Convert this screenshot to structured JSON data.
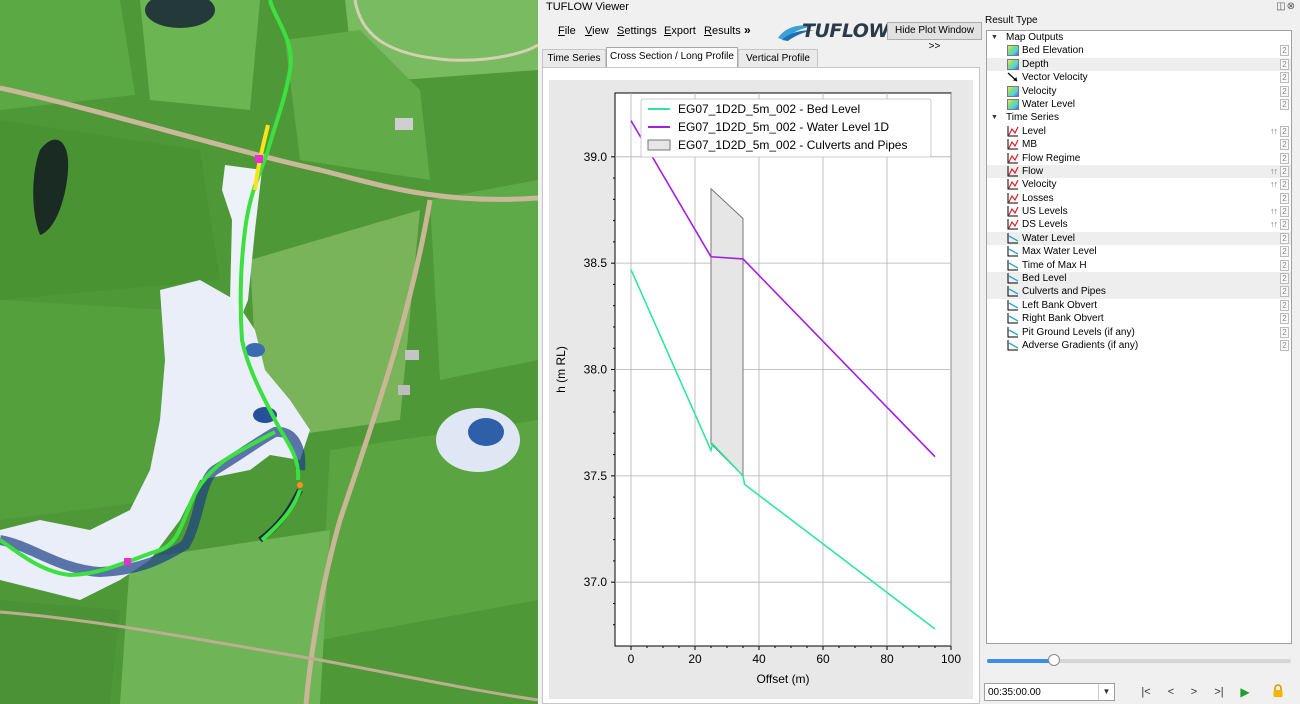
{
  "viewer": {
    "title": "TUFLOW Viewer",
    "window_buttons": "◫⊗",
    "menu": [
      "File",
      "View",
      "Settings",
      "Export",
      "Results"
    ],
    "more": "»",
    "logo": "TUFLOW",
    "hide_plot_button": "Hide Plot Window >>"
  },
  "tabs": [
    {
      "label": "Time Series",
      "active": false
    },
    {
      "label": "Cross Section / Long Profile",
      "active": true
    },
    {
      "label": "Vertical Profile",
      "active": false
    }
  ],
  "chart_data": {
    "type": "line",
    "xlabel": "Offset (m)",
    "ylabel": "h (m RL)",
    "xlim": [
      -5,
      100
    ],
    "ylim": [
      36.7,
      39.3
    ],
    "xticks": [
      0,
      20,
      40,
      60,
      80,
      100
    ],
    "yticks": [
      37.0,
      37.5,
      38.0,
      38.5,
      39.0
    ],
    "grid": true,
    "legend_position": "top-center",
    "series": [
      {
        "name": "EG07_1D2D_5m_002 - Bed Level",
        "color": "#2ee6a0",
        "x": [
          0,
          25,
          25.5,
          35,
          35.5,
          95
        ],
        "y": [
          38.47,
          37.62,
          37.65,
          37.5,
          37.46,
          36.78
        ]
      },
      {
        "name": "EG07_1D2D_5m_002 - Water Level 1D",
        "color": "#a21ee0",
        "x": [
          0,
          25,
          35,
          95
        ],
        "y": [
          39.17,
          38.53,
          38.52,
          37.59
        ]
      },
      {
        "name": "EG07_1D2D_5m_002 - Culverts and Pipes",
        "color": "#e6e6e6",
        "polygon_x": [
          25,
          25,
          35,
          35
        ],
        "polygon_y": [
          37.65,
          38.85,
          38.71,
          37.5
        ]
      }
    ]
  },
  "result_panel": {
    "label": "Result Type",
    "groups": [
      {
        "name": "Map Outputs",
        "items": [
          {
            "label": "Bed Elevation",
            "icon": "map-icon",
            "shaded": false
          },
          {
            "label": "Depth",
            "icon": "map-icon",
            "shaded": true
          },
          {
            "label": "Vector Velocity",
            "icon": "vector-icon",
            "shaded": false
          },
          {
            "label": "Velocity",
            "icon": "map-icon",
            "shaded": false
          },
          {
            "label": "Water Level",
            "icon": "map-icon",
            "shaded": false
          }
        ]
      },
      {
        "name": "Time Series",
        "items": [
          {
            "label": "Level",
            "icon": "ts-icon",
            "shaded": false,
            "arrows": true
          },
          {
            "label": "MB",
            "icon": "ts-icon",
            "shaded": false,
            "arrows": false
          },
          {
            "label": "Flow Regime",
            "icon": "ts-icon",
            "shaded": false,
            "arrows": false
          },
          {
            "label": "Flow",
            "icon": "ts-icon",
            "shaded": true,
            "arrows": true
          },
          {
            "label": "Velocity",
            "icon": "ts-icon",
            "shaded": false,
            "arrows": true
          },
          {
            "label": "Losses",
            "icon": "ts-icon",
            "shaded": false,
            "arrows": false
          },
          {
            "label": "US Levels",
            "icon": "ts-icon",
            "shaded": false,
            "arrows": true
          },
          {
            "label": "DS Levels",
            "icon": "ts-icon",
            "shaded": false,
            "arrows": true
          },
          {
            "label": "Water Level",
            "icon": "lp-icon",
            "shaded": true,
            "arrows": false
          },
          {
            "label": "Max Water Level",
            "icon": "lp-icon",
            "shaded": false,
            "arrows": false
          },
          {
            "label": "Time of Max H",
            "icon": "lp-icon",
            "shaded": false,
            "arrows": false
          },
          {
            "label": "Bed Level",
            "icon": "lp-icon",
            "shaded": true,
            "arrows": false
          },
          {
            "label": "Culverts and Pipes",
            "icon": "lp-icon",
            "shaded": true,
            "arrows": false
          },
          {
            "label": "Left Bank Obvert",
            "icon": "lp-icon",
            "shaded": false,
            "arrows": false
          },
          {
            "label": "Right Bank Obvert",
            "icon": "lp-icon",
            "shaded": false,
            "arrows": false
          },
          {
            "label": "Pit Ground Levels (if any)",
            "icon": "lp-icon",
            "shaded": false,
            "arrows": false
          },
          {
            "label": "Adverse Gradients (if any)",
            "icon": "lp-icon",
            "shaded": false,
            "arrows": false
          }
        ]
      }
    ]
  },
  "time_control": {
    "slider_position": 0.22,
    "time_value": "00:35:00.00",
    "buttons": [
      "|<",
      "<",
      ">",
      ">|"
    ]
  }
}
